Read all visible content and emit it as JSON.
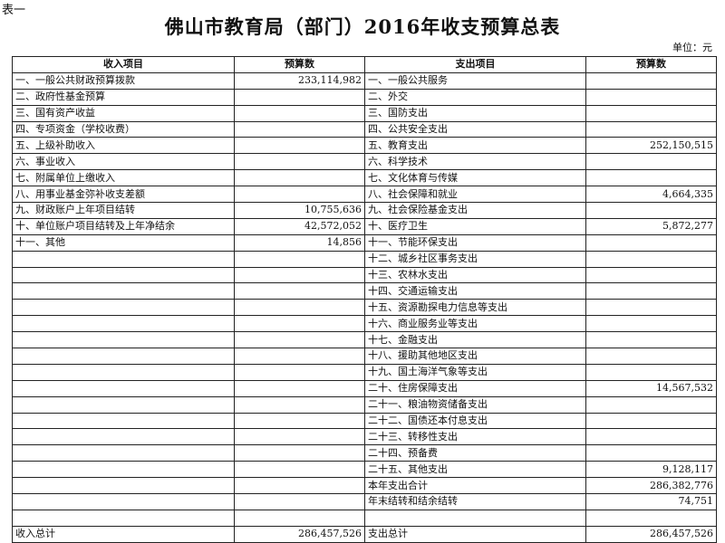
{
  "doc": {
    "tag": "表一",
    "title": "佛山市教育局（部门）2016年收支预算总表",
    "unit": "单位：元"
  },
  "headers": [
    "收入项目",
    "预算数",
    "支出项目",
    "预算数"
  ],
  "rows": [
    [
      "一、一般公共财政预算拨款",
      "233,114,982",
      "一、一般公共服务",
      ""
    ],
    [
      "二、政府性基金预算",
      "",
      "二、外交",
      ""
    ],
    [
      "三、国有资产收益",
      "",
      "三、国防支出",
      ""
    ],
    [
      "四、专项资金（学校收费）",
      "",
      "四、公共安全支出",
      ""
    ],
    [
      "五、上级补助收入",
      "",
      "五、教育支出",
      "252,150,515"
    ],
    [
      "六、事业收入",
      "",
      "六、科学技术",
      ""
    ],
    [
      "七、附属单位上缴收入",
      "",
      "七、文化体育与传媒",
      ""
    ],
    [
      "八、用事业基金弥补收支差额",
      "",
      "八、社会保障和就业",
      "4,664,335"
    ],
    [
      "九、财政账户上年项目结转",
      "10,755,636",
      "九、社会保险基金支出",
      ""
    ],
    [
      "十、单位账户项目结转及上年净结余",
      "42,572,052",
      "十、医疗卫生",
      "5,872,277"
    ],
    [
      "十一、其他",
      "14,856",
      "十一、节能环保支出",
      ""
    ],
    [
      "",
      "",
      "十二、城乡社区事务支出",
      ""
    ],
    [
      "",
      "",
      "十三、农林水支出",
      ""
    ],
    [
      "",
      "",
      "十四、交通运输支出",
      ""
    ],
    [
      "",
      "",
      "十五、资源勘探电力信息等支出",
      ""
    ],
    [
      "",
      "",
      "十六、商业服务业等支出",
      ""
    ],
    [
      "",
      "",
      "十七、金融支出",
      ""
    ],
    [
      "",
      "",
      "十八、援助其他地区支出",
      ""
    ],
    [
      "",
      "",
      "十九、国土海洋气象等支出",
      ""
    ],
    [
      "",
      "",
      "二十、住房保障支出",
      "14,567,532"
    ],
    [
      "",
      "",
      "二十一、粮油物资储备支出",
      ""
    ],
    [
      "",
      "",
      "二十二、国债还本付息支出",
      ""
    ],
    [
      "",
      "",
      "二十三、转移性支出",
      ""
    ],
    [
      "",
      "",
      "二十四、预备费",
      ""
    ],
    [
      "",
      "",
      "二十五、其他支出",
      "9,128,117"
    ],
    [
      "",
      "",
      "本年支出合计",
      "286,382,776"
    ],
    [
      "",
      "",
      "年末结转和结余结转",
      "74,751"
    ],
    [
      "",
      "",
      "",
      ""
    ],
    [
      "收入总计",
      "286,457,526",
      "支出总计",
      "286,457,526"
    ]
  ]
}
